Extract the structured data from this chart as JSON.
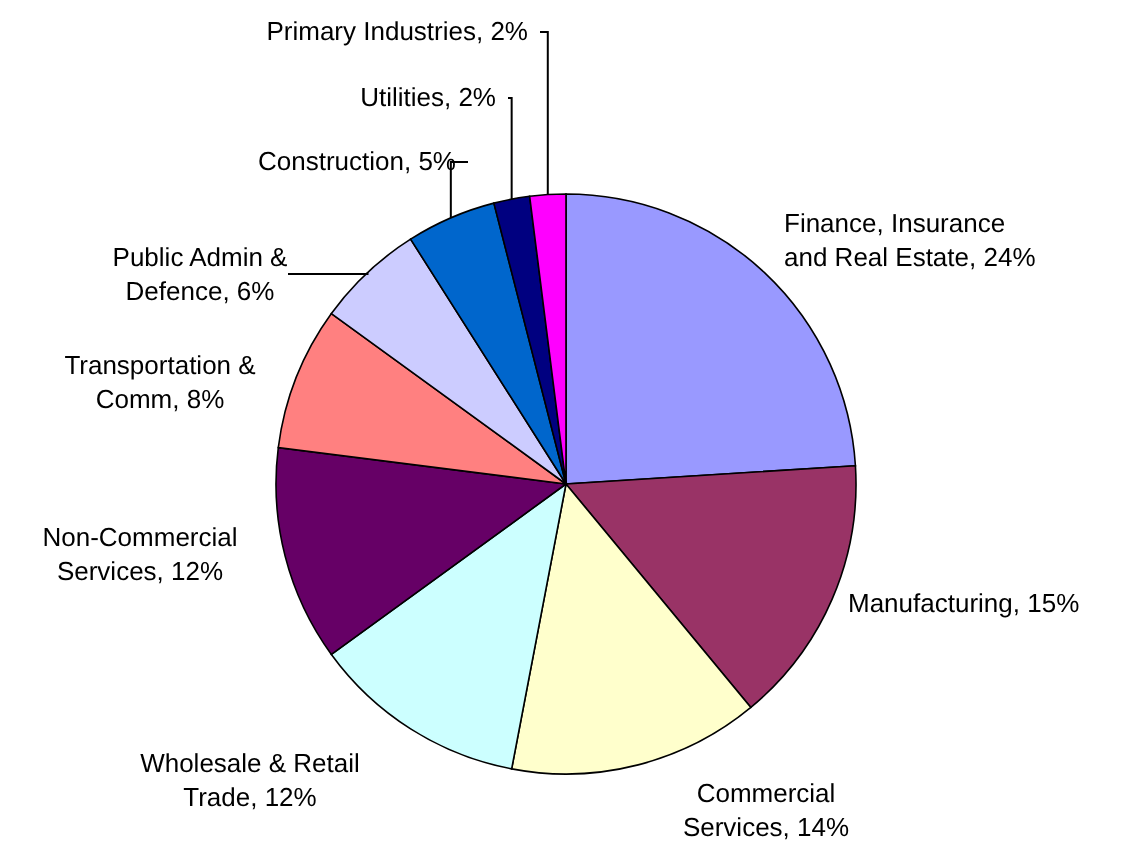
{
  "chart_data": {
    "type": "pie",
    "categories": [
      "Finance, Insurance and Real Estate",
      "Manufacturing",
      "Commercial Services",
      "Wholesale & Retail Trade",
      "Non-Commercial Services",
      "Transportation & Comm",
      "Public Admin & Defence",
      "Construction",
      "Utilities",
      "Primary Industries"
    ],
    "values": [
      24,
      15,
      14,
      12,
      12,
      8,
      6,
      5,
      2,
      2
    ],
    "colors": [
      "#9999ff",
      "#993366",
      "#ffffcc",
      "#ccffff",
      "#660066",
      "#ff8080",
      "#ccccff",
      "#0066cc",
      "#000080",
      "#ff00ff"
    ],
    "value_labels": [
      "24%",
      "15%",
      "14%",
      "12%",
      "12%",
      "8%",
      "6%",
      "5%",
      "2%",
      "2%"
    ]
  }
}
